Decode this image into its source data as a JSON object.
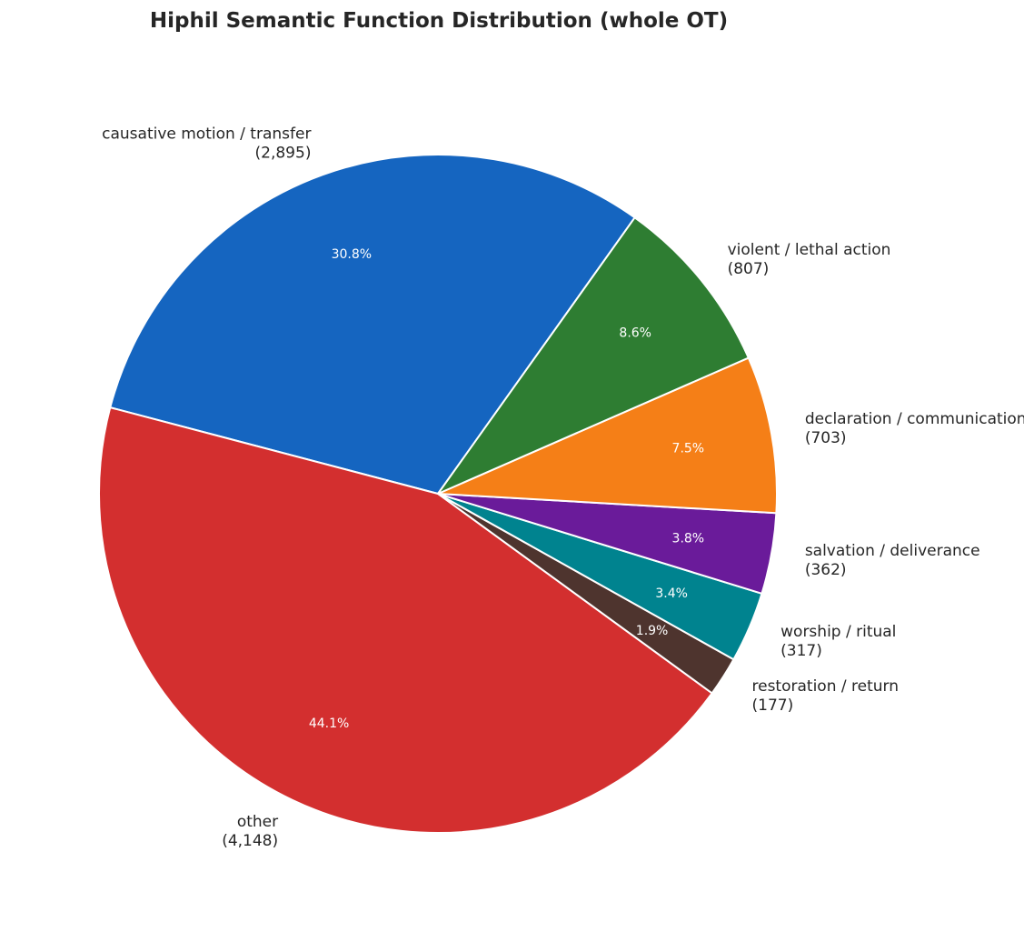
{
  "chart_data": {
    "type": "pie",
    "title": "Hiphil Semantic Function Distribution (whole OT)",
    "slices": [
      {
        "label": "causative motion / transfer",
        "count": "(2,895)",
        "value": 2895,
        "percent": "30.8%",
        "color": "#1565c0"
      },
      {
        "label": "other",
        "count": "(4,148)",
        "value": 4148,
        "percent": "44.1%",
        "color": "#d32f2f"
      },
      {
        "label": "restoration / return",
        "count": "(177)",
        "value": 177,
        "percent": "1.9%",
        "color": "#4e342e"
      },
      {
        "label": "worship / ritual",
        "count": "(317)",
        "value": 317,
        "percent": "3.4%",
        "color": "#00838f"
      },
      {
        "label": "salvation / deliverance",
        "count": "(362)",
        "value": 362,
        "percent": "3.8%",
        "color": "#6a1b9a"
      },
      {
        "label": "declaration / communication",
        "count": "(703)",
        "value": 703,
        "percent": "7.5%",
        "color": "#f57f17"
      },
      {
        "label": "violent / lethal action",
        "count": "(807)",
        "value": 807,
        "percent": "8.6%",
        "color": "#2e7d32"
      }
    ]
  }
}
